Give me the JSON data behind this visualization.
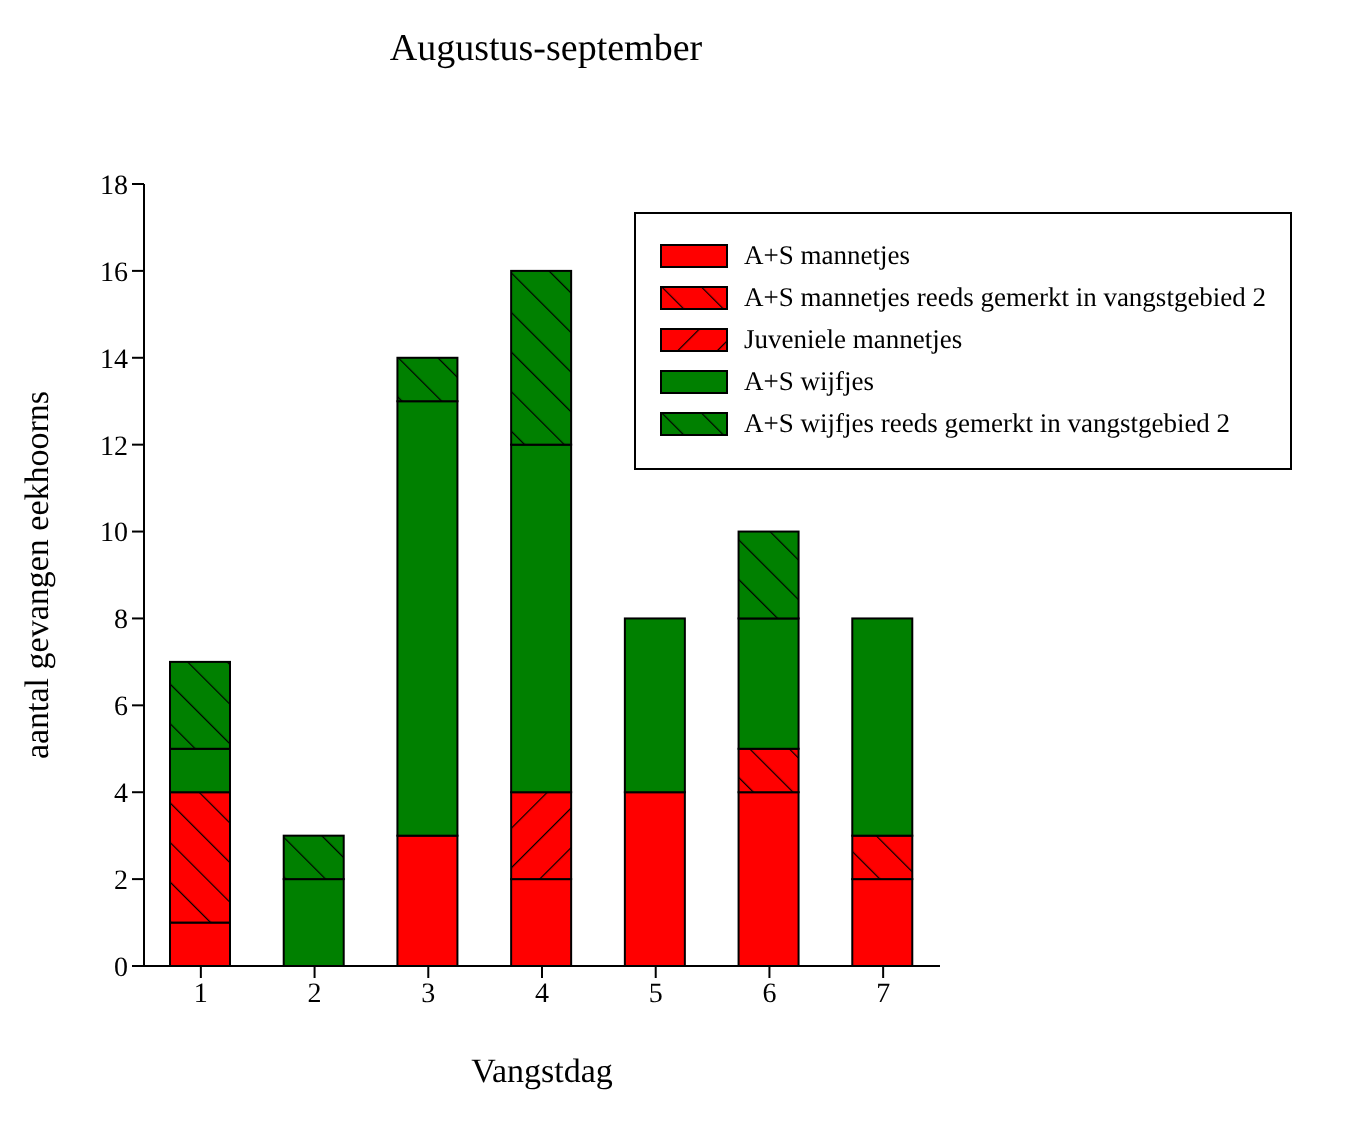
{
  "chart_data": {
    "type": "bar",
    "title": "Augustus-september",
    "xlabel": "Vangstdag",
    "ylabel": "aantal gevangen eekhoorns",
    "categories": [
      "1",
      "2",
      "3",
      "4",
      "5",
      "6",
      "7"
    ],
    "stacked": true,
    "ylim": [
      0,
      18
    ],
    "yticks": [
      0,
      2,
      4,
      6,
      8,
      10,
      12,
      14,
      16,
      18
    ],
    "legend": "top right",
    "series": [
      {
        "name": "A+S mannetjes",
        "color": "#ff0000",
        "values": [
          1,
          0,
          3,
          2,
          4,
          4,
          2
        ]
      },
      {
        "name": "A+S mannetjes reeds gemerkt in vangstgebied 2",
        "color": "#ff0000",
        "values": [
          3,
          0,
          0,
          0,
          0,
          1,
          1
        ]
      },
      {
        "name": "Juveniele mannetjes",
        "color": "#ff0000",
        "values": [
          0,
          0,
          0,
          2,
          0,
          0,
          0
        ]
      },
      {
        "name": "A+S wijfjes",
        "color": "#008000",
        "values": [
          1,
          2,
          10,
          8,
          4,
          3,
          5
        ]
      },
      {
        "name": "A+S wijfjes reeds gemerkt in vangstgebied 2",
        "color": "#008000",
        "values": [
          2,
          1,
          1,
          4,
          0,
          2,
          0
        ]
      }
    ]
  }
}
